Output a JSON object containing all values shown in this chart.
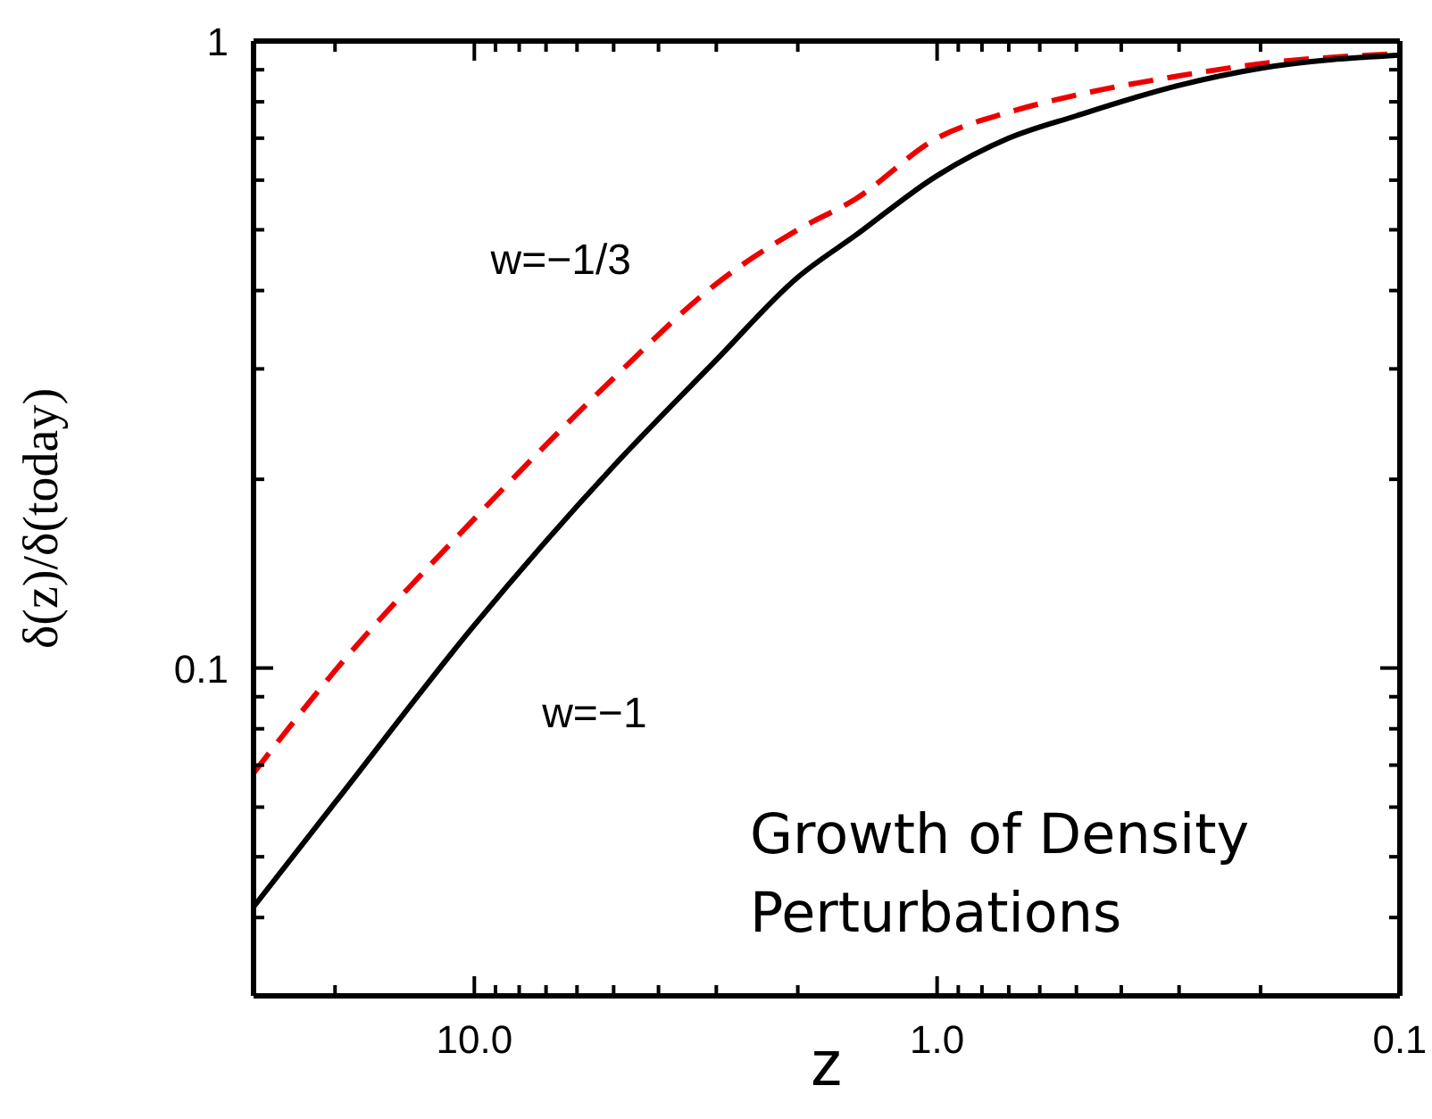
{
  "chart_data": {
    "type": "line",
    "xlabel": "z",
    "ylabel": "δ(z)/δ(today)",
    "log": "xy",
    "marker": "none",
    "xlim": [
      30,
      0.1
    ],
    "ylim": [
      0.03,
      1
    ],
    "xticks": [
      {
        "value": 20,
        "label": null
      },
      {
        "value": 10,
        "label": "10.0"
      },
      {
        "value": 9,
        "label": null
      },
      {
        "value": 8,
        "label": null
      },
      {
        "value": 7,
        "label": null
      },
      {
        "value": 6,
        "label": null
      },
      {
        "value": 5,
        "label": null
      },
      {
        "value": 4,
        "label": null
      },
      {
        "value": 3,
        "label": null
      },
      {
        "value": 2,
        "label": null
      },
      {
        "value": 1,
        "label": "1.0"
      },
      {
        "value": 0.9,
        "label": null
      },
      {
        "value": 0.8,
        "label": null
      },
      {
        "value": 0.7,
        "label": null
      },
      {
        "value": 0.6,
        "label": null
      },
      {
        "value": 0.5,
        "label": null
      },
      {
        "value": 0.4,
        "label": null
      },
      {
        "value": 0.3,
        "label": null
      },
      {
        "value": 0.2,
        "label": null
      },
      0.1
    ],
    "yticks": [
      {
        "value": 0.04,
        "label": null
      },
      {
        "value": 0.05,
        "label": null
      },
      {
        "value": 0.06,
        "label": null
      },
      {
        "value": 0.07,
        "label": null
      },
      {
        "value": 0.08,
        "label": null
      },
      {
        "value": 0.09,
        "label": null
      },
      0.1,
      {
        "value": 0.2,
        "label": null
      },
      {
        "value": 0.3,
        "label": null
      },
      {
        "value": 0.4,
        "label": null
      },
      {
        "value": 0.5,
        "label": null
      },
      {
        "value": 0.6,
        "label": null
      },
      {
        "value": 0.7,
        "label": null
      },
      {
        "value": 0.8,
        "label": null
      },
      {
        "value": 0.9,
        "label": null
      },
      1
    ],
    "series": [
      {
        "name": "w=−1/3",
        "color": "#ee0000",
        "line_style": "dashed",
        "x": [
          30,
          20,
          10,
          5,
          3,
          2,
          1.5,
          1,
          0.7,
          0.5,
          0.3,
          0.2,
          0.1
        ],
        "values": [
          0.068,
          0.099,
          0.173,
          0.29,
          0.41,
          0.5,
          0.56,
          0.7,
          0.77,
          0.82,
          0.88,
          0.92,
          0.955
        ]
      },
      {
        "name": "w=−1",
        "color": "#000000",
        "line_style": "solid",
        "x": [
          30,
          20,
          10,
          5,
          3,
          2,
          1.5,
          1,
          0.7,
          0.5,
          0.3,
          0.2,
          0.1
        ],
        "values": [
          0.0416,
          0.061,
          0.117,
          0.21,
          0.31,
          0.42,
          0.49,
          0.61,
          0.7,
          0.76,
          0.85,
          0.905,
          0.95
        ]
      }
    ],
    "annotations": [
      "Growth of Density Perturbations"
    ]
  }
}
